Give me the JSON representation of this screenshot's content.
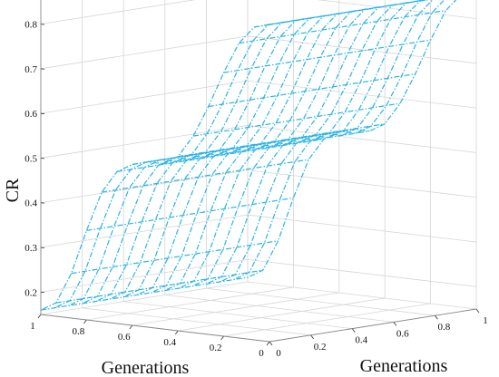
{
  "chart_data": {
    "type": "surface",
    "xlabel": "Generations",
    "ylabel": "Generations",
    "zlabel": "CR",
    "xlim": [
      0,
      1
    ],
    "ylim": [
      0,
      1
    ],
    "zlim": [
      0.15,
      0.87
    ],
    "x_ticks": [
      "0",
      "0.2",
      "0.4",
      "0.6",
      "0.8",
      "1"
    ],
    "y_ticks": [
      "0",
      "0.2",
      "0.4",
      "0.6",
      "0.8",
      "1"
    ],
    "z_ticks": [
      "0.2",
      "0.3",
      "0.4",
      "0.5",
      "0.6",
      "0.7",
      "0.8"
    ],
    "grid": true,
    "mesh_style": "dash-dot",
    "color": "#2bb3e6",
    "x": [
      0,
      0.0667,
      0.1333,
      0.2,
      0.2667,
      0.3333,
      0.4,
      0.4667,
      0.5333,
      0.6,
      0.6667,
      0.7333,
      0.8,
      0.8667,
      0.9333,
      1
    ],
    "y": [
      0,
      0.0667,
      0.1333,
      0.2,
      0.2667,
      0.3333,
      0.4,
      0.4667,
      0.5333,
      0.6,
      0.6667,
      0.7333,
      0.8,
      0.8667,
      0.9333,
      1
    ],
    "z_profile_along_x": [
      0.86,
      0.85,
      0.81,
      0.74,
      0.66,
      0.59,
      0.54,
      0.52,
      0.52,
      0.51,
      0.49,
      0.44,
      0.35,
      0.25,
      0.18,
      0.16
    ]
  }
}
